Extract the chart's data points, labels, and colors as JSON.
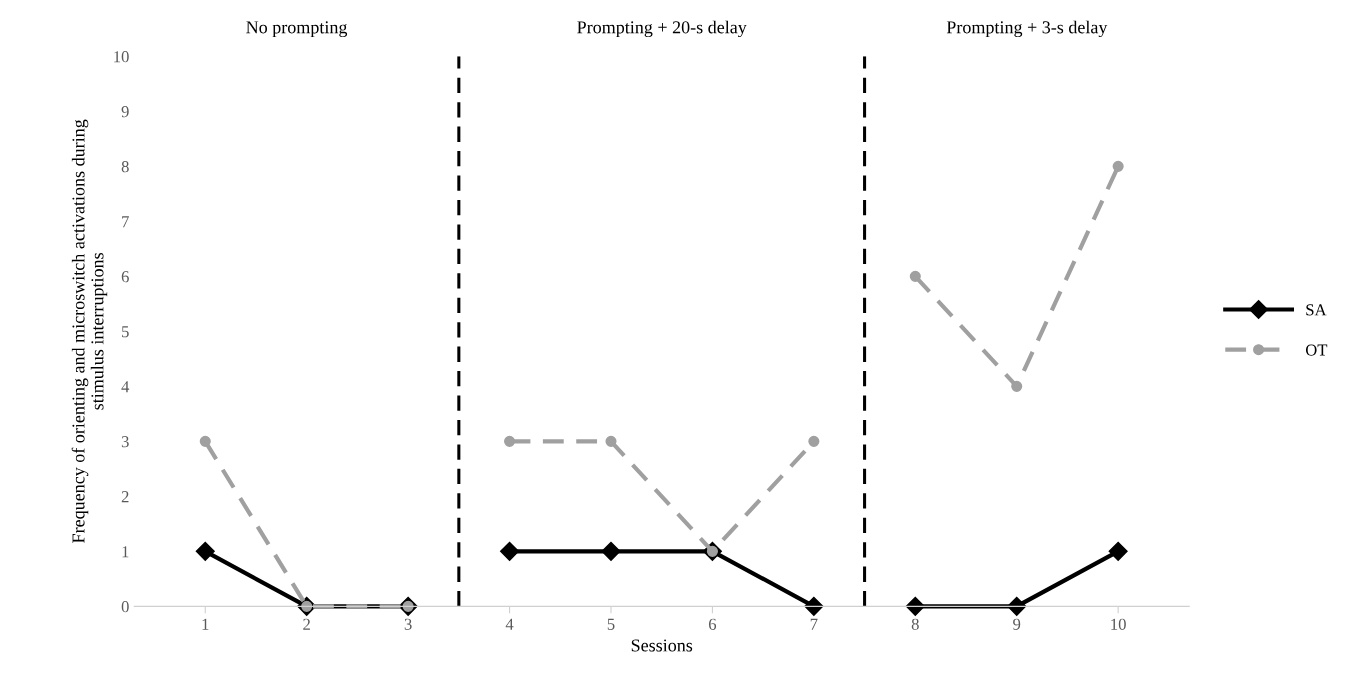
{
  "chart_data": {
    "type": "line",
    "xlabel": "Sessions",
    "ylabel": "Frequency of orienting and microswitch activations during\nstimulus interruptions",
    "x": [
      1,
      2,
      3,
      4,
      5,
      6,
      7,
      8,
      9,
      10
    ],
    "xlim": [
      0.3,
      10.7
    ],
    "xticks": [
      1,
      2,
      3,
      4,
      5,
      6,
      7,
      8,
      9,
      10
    ],
    "ylim": [
      0,
      10
    ],
    "yticks": [
      0,
      1,
      2,
      3,
      4,
      5,
      6,
      7,
      8,
      9,
      10
    ],
    "series": [
      {
        "name": "SA",
        "color": "#000000",
        "marker": "diamond",
        "line_style": "solid",
        "values": [
          1,
          0,
          0,
          1,
          1,
          1,
          0,
          0,
          0,
          1
        ]
      },
      {
        "name": "OT",
        "color": "#a0a0a0",
        "marker": "circle",
        "line_style": "dashed",
        "values": [
          3,
          0,
          0,
          3,
          3,
          1,
          3,
          6,
          4,
          8
        ]
      }
    ],
    "ref_lines": [
      {
        "axis": "x",
        "value": 3.5,
        "color": "#000000",
        "line_style": "dashed"
      },
      {
        "axis": "x",
        "value": 7.5,
        "color": "#000000",
        "line_style": "dashed"
      }
    ],
    "annotations": [
      "No prompting",
      "Prompting + 20-s delay",
      "Prompting + 3-s delay"
    ],
    "grid": false,
    "legend": "right"
  }
}
